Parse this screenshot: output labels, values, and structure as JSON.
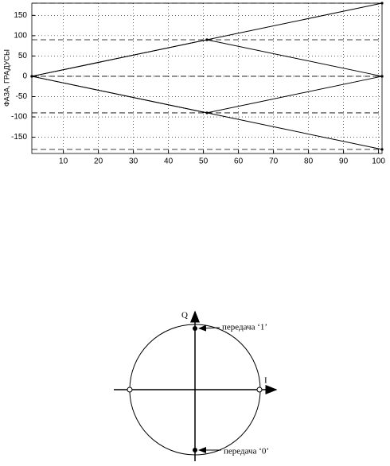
{
  "chart_data": {
    "type": "line",
    "ylabel": "ФАЗА, ГРАДУСЫ",
    "xlim": [
      1,
      101
    ],
    "ylim": [
      -190,
      180
    ],
    "xticks": [
      10,
      20,
      30,
      40,
      50,
      60,
      70,
      80,
      90,
      100
    ],
    "yticks": [
      -150,
      -100,
      -50,
      0,
      50,
      100,
      150
    ],
    "grid": true,
    "color": "#000000",
    "hlines": [
      180,
      90,
      0,
      -90,
      -180
    ],
    "series": [
      {
        "x": [
          1,
          51,
          101
        ],
        "values": [
          0,
          90,
          180
        ]
      },
      {
        "x": [
          1,
          51,
          101
        ],
        "values": [
          0,
          90,
          0
        ]
      },
      {
        "x": [
          1,
          51,
          101
        ],
        "values": [
          0,
          -90,
          0
        ]
      },
      {
        "x": [
          1,
          51,
          101
        ],
        "values": [
          0,
          -90,
          -180
        ]
      }
    ]
  },
  "diagram": {
    "q_label": "Q",
    "i_label": "I",
    "label_one": "передача ‘1’",
    "label_zero": "передача ‘0’"
  }
}
